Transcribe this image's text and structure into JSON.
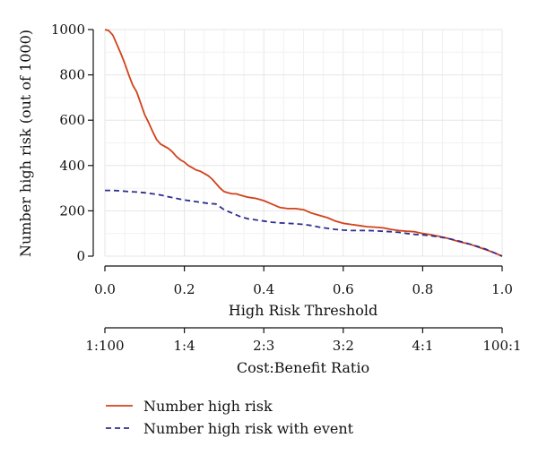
{
  "chart_data": {
    "type": "line",
    "title": "",
    "xlabel": "High Risk Threshold",
    "ylabel": "Number high risk (out of 1000)",
    "xlim": [
      0,
      1
    ],
    "ylim": [
      0,
      1000
    ],
    "x_ticks": [
      "0.0",
      "0.2",
      "0.4",
      "0.6",
      "0.8",
      "1.0"
    ],
    "y_ticks": [
      "0",
      "200",
      "400",
      "600",
      "800",
      "1000"
    ],
    "grid": true,
    "secondary_axis": {
      "label": "Cost:Benefit Ratio",
      "ticks": [
        "1:100",
        "1:4",
        "2:3",
        "3:2",
        "4:1",
        "100:1"
      ]
    },
    "legend_position": "bottom-left",
    "series": [
      {
        "name": "Number high risk",
        "color": "#d2421b",
        "style": "solid",
        "x": [
          0.0,
          0.01,
          0.02,
          0.03,
          0.04,
          0.05,
          0.06,
          0.07,
          0.08,
          0.09,
          0.1,
          0.11,
          0.12,
          0.13,
          0.14,
          0.15,
          0.16,
          0.17,
          0.18,
          0.19,
          0.2,
          0.21,
          0.22,
          0.23,
          0.24,
          0.25,
          0.26,
          0.27,
          0.28,
          0.29,
          0.3,
          0.31,
          0.32,
          0.33,
          0.34,
          0.35,
          0.36,
          0.38,
          0.4,
          0.42,
          0.44,
          0.46,
          0.48,
          0.5,
          0.52,
          0.54,
          0.56,
          0.58,
          0.6,
          0.62,
          0.64,
          0.66,
          0.68,
          0.7,
          0.72,
          0.74,
          0.76,
          0.78,
          0.8,
          0.82,
          0.84,
          0.86,
          0.88,
          0.9,
          0.92,
          0.94,
          0.96,
          0.98,
          1.0
        ],
        "values": [
          1000,
          995,
          975,
          935,
          895,
          850,
          800,
          755,
          725,
          675,
          625,
          590,
          550,
          515,
          495,
          485,
          475,
          460,
          440,
          425,
          415,
          400,
          390,
          380,
          375,
          365,
          355,
          340,
          320,
          300,
          285,
          280,
          275,
          275,
          270,
          265,
          260,
          255,
          245,
          230,
          215,
          210,
          210,
          205,
          190,
          180,
          170,
          155,
          145,
          140,
          135,
          130,
          128,
          125,
          118,
          113,
          110,
          108,
          100,
          95,
          88,
          80,
          70,
          60,
          52,
          40,
          28,
          15,
          0
        ]
      },
      {
        "name": "Number high risk with event",
        "color": "#2e2f8f",
        "style": "dashed",
        "x": [
          0.0,
          0.02,
          0.04,
          0.06,
          0.08,
          0.1,
          0.12,
          0.14,
          0.16,
          0.18,
          0.2,
          0.22,
          0.24,
          0.26,
          0.28,
          0.3,
          0.32,
          0.34,
          0.36,
          0.38,
          0.4,
          0.42,
          0.44,
          0.46,
          0.48,
          0.5,
          0.52,
          0.54,
          0.56,
          0.58,
          0.6,
          0.62,
          0.64,
          0.66,
          0.68,
          0.7,
          0.72,
          0.74,
          0.76,
          0.78,
          0.8,
          0.82,
          0.84,
          0.86,
          0.88,
          0.9,
          0.92,
          0.94,
          0.96,
          0.98,
          1.0
        ],
        "values": [
          290,
          290,
          288,
          285,
          283,
          280,
          275,
          270,
          262,
          255,
          248,
          243,
          238,
          233,
          230,
          205,
          190,
          175,
          165,
          160,
          155,
          150,
          147,
          145,
          143,
          140,
          135,
          128,
          123,
          118,
          115,
          113,
          113,
          113,
          112,
          110,
          108,
          105,
          100,
          96,
          94,
          90,
          85,
          80,
          72,
          63,
          52,
          42,
          30,
          15,
          0
        ]
      }
    ]
  }
}
